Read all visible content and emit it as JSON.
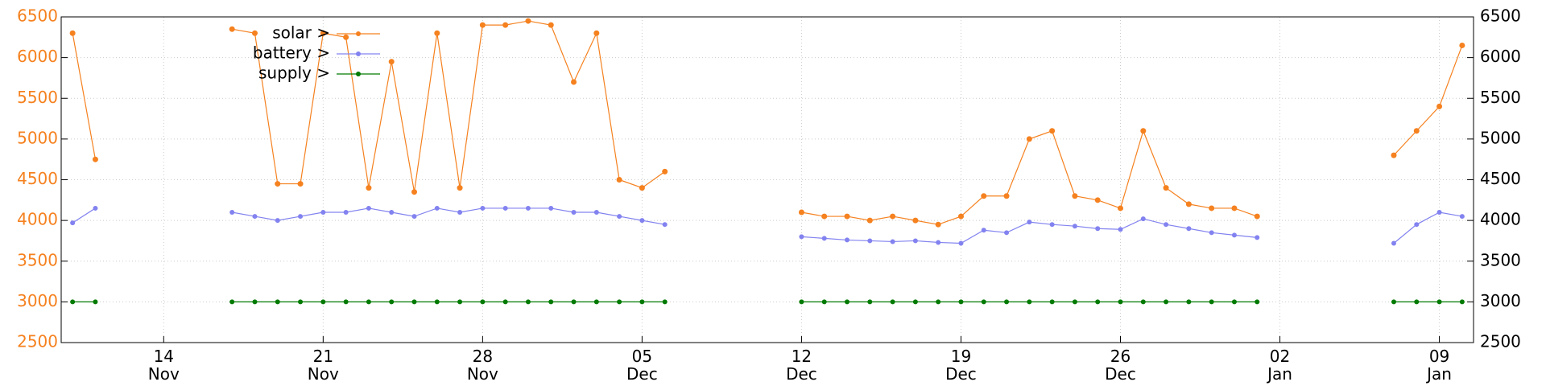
{
  "chart_data": {
    "type": "line",
    "categories": [
      "Nov 10",
      "Nov 11",
      "Nov 12",
      "Nov 13",
      "Nov 14",
      "Nov 15",
      "Nov 16",
      "Nov 17",
      "Nov 18",
      "Nov 19",
      "Nov 20",
      "Nov 21",
      "Nov 22",
      "Nov 23",
      "Nov 24",
      "Nov 25",
      "Nov 26",
      "Nov 27",
      "Nov 28",
      "Nov 29",
      "Nov 30",
      "Dec 01",
      "Dec 02",
      "Dec 03",
      "Dec 04",
      "Dec 05",
      "Dec 06",
      "Dec 07",
      "Dec 08",
      "Dec 09",
      "Dec 10",
      "Dec 11",
      "Dec 12",
      "Dec 13",
      "Dec 14",
      "Dec 15",
      "Dec 16",
      "Dec 17",
      "Dec 18",
      "Dec 19",
      "Dec 20",
      "Dec 21",
      "Dec 22",
      "Dec 23",
      "Dec 24",
      "Dec 25",
      "Dec 26",
      "Dec 27",
      "Dec 28",
      "Dec 29",
      "Dec 30",
      "Dec 31",
      "Jan 01",
      "Jan 02",
      "Jan 03",
      "Jan 04",
      "Jan 05",
      "Jan 06",
      "Jan 07",
      "Jan 08",
      "Jan 09",
      "Jan 10"
    ],
    "series": [
      {
        "name": "solar >",
        "color": "#f5811f",
        "values": [
          6300,
          4750,
          null,
          null,
          null,
          null,
          null,
          6350,
          6300,
          4450,
          4450,
          6300,
          6250,
          4400,
          5950,
          4350,
          6300,
          4400,
          6400,
          6400,
          6450,
          6400,
          5700,
          6300,
          4500,
          4400,
          4600,
          null,
          null,
          null,
          null,
          null,
          4100,
          4050,
          4050,
          4000,
          4050,
          4000,
          3950,
          4050,
          4300,
          4300,
          5000,
          5100,
          4300,
          4250,
          4150,
          5100,
          4400,
          4200,
          4150,
          4150,
          4050,
          null,
          null,
          null,
          null,
          null,
          4800,
          5100,
          5400,
          6150
        ]
      },
      {
        "name": "battery >",
        "color": "#8282f0",
        "values": [
          3970,
          4150,
          null,
          null,
          null,
          null,
          null,
          4100,
          4050,
          4000,
          4050,
          4100,
          4100,
          4150,
          4100,
          4050,
          4150,
          4100,
          4150,
          4150,
          4150,
          4150,
          4100,
          4100,
          4050,
          4000,
          3950,
          null,
          null,
          null,
          null,
          null,
          3800,
          3780,
          3760,
          3750,
          3740,
          3750,
          3730,
          3720,
          3880,
          3850,
          3980,
          3950,
          3930,
          3900,
          3890,
          4020,
          3950,
          3900,
          3850,
          3820,
          3790,
          null,
          null,
          null,
          null,
          null,
          3720,
          3950,
          4100,
          4050
        ]
      },
      {
        "name": "supply >",
        "color": "#007a00",
        "values": [
          3000,
          3000,
          null,
          null,
          null,
          null,
          null,
          3000,
          3000,
          3000,
          3000,
          3000,
          3000,
          3000,
          3000,
          3000,
          3000,
          3000,
          3000,
          3000,
          3000,
          3000,
          3000,
          3000,
          3000,
          3000,
          3000,
          null,
          null,
          null,
          null,
          null,
          3000,
          3000,
          3000,
          3000,
          3000,
          3000,
          3000,
          3000,
          3000,
          3000,
          3000,
          3000,
          3000,
          3000,
          3000,
          3000,
          3000,
          3000,
          3000,
          3000,
          3000,
          null,
          null,
          null,
          null,
          null,
          3000,
          3000,
          3000,
          3000
        ]
      }
    ],
    "ylim": [
      2500,
      6500
    ],
    "yticks": [
      2500,
      3000,
      3500,
      4000,
      4500,
      5000,
      5500,
      6000,
      6500
    ],
    "y2lim": [
      2500,
      6500
    ],
    "y2ticks": [
      2500,
      3000,
      3500,
      4000,
      4500,
      5000,
      5500,
      6000,
      6500
    ],
    "xticks": [
      {
        "value": "Nov 14",
        "label": "14\nNov"
      },
      {
        "value": "Nov 21",
        "label": "21\nNov"
      },
      {
        "value": "Nov 28",
        "label": "28\nNov"
      },
      {
        "value": "Dec 05",
        "label": "05\nDec"
      },
      {
        "value": "Dec 12",
        "label": "12\nDec"
      },
      {
        "value": "Dec 19",
        "label": "19\nDec"
      },
      {
        "value": "Dec 26",
        "label": "26\nDec"
      },
      {
        "value": "Jan 02",
        "label": "02\nJan"
      },
      {
        "value": "Jan 09",
        "label": "09\nJan"
      }
    ],
    "grid": true,
    "legend": "top-left"
  }
}
